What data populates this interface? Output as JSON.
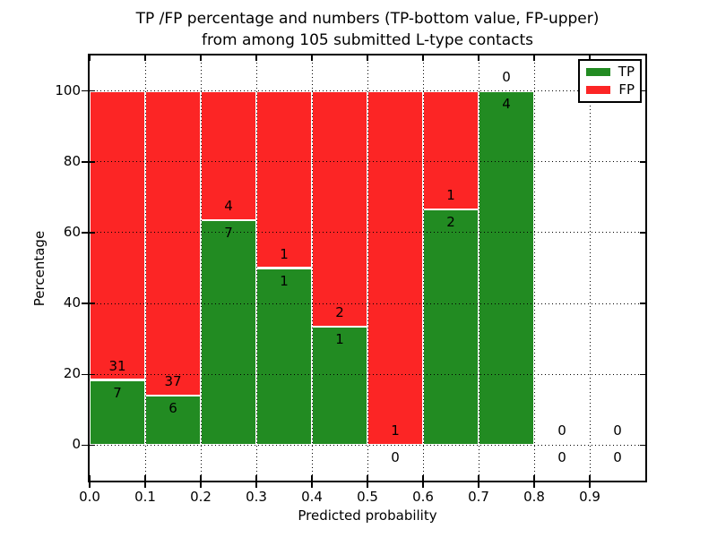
{
  "chart_data": {
    "type": "bar",
    "variant": "stacked-percentage",
    "title_lines": [
      "TP /FP percentage and numbers (TP-bottom value, FP-upper)",
      "from among 105 submitted L-type contacts"
    ],
    "xlabel": "Predicted probability",
    "ylabel": "Percentage",
    "total_submitted_contacts": 105,
    "bin_edges": [
      0.0,
      0.1,
      0.2,
      0.3,
      0.4,
      0.5,
      0.6,
      0.7,
      0.8,
      0.9,
      1.0
    ],
    "categories": [
      "0.0-0.1",
      "0.1-0.2",
      "0.2-0.3",
      "0.3-0.4",
      "0.4-0.5",
      "0.5-0.6",
      "0.6-0.7",
      "0.7-0.8",
      "0.8-0.9",
      "0.9-1.0"
    ],
    "series": [
      {
        "name": "TP",
        "color": "#228b22",
        "counts": [
          7,
          6,
          7,
          1,
          1,
          0,
          2,
          4,
          0,
          0
        ]
      },
      {
        "name": "FP",
        "color": "#fc2525",
        "counts": [
          31,
          37,
          4,
          1,
          2,
          1,
          1,
          0,
          0,
          0
        ]
      }
    ],
    "tp_percent_per_bin": [
      18.4,
      14.0,
      63.6,
      50.0,
      33.3,
      0.0,
      66.7,
      100.0,
      null,
      null
    ],
    "xtick_labels": [
      "0.0",
      "0.1",
      "0.2",
      "0.3",
      "0.4",
      "0.5",
      "0.6",
      "0.7",
      "0.8",
      "0.9"
    ],
    "yticks": [
      0,
      20,
      40,
      60,
      80,
      100
    ],
    "xlim": [
      0.0,
      1.0
    ],
    "ylim": [
      -10,
      110
    ],
    "grid": "dotted",
    "legend_position": "upper right",
    "bar_edge_color": "#ffffff",
    "axis_color": "#000000"
  }
}
